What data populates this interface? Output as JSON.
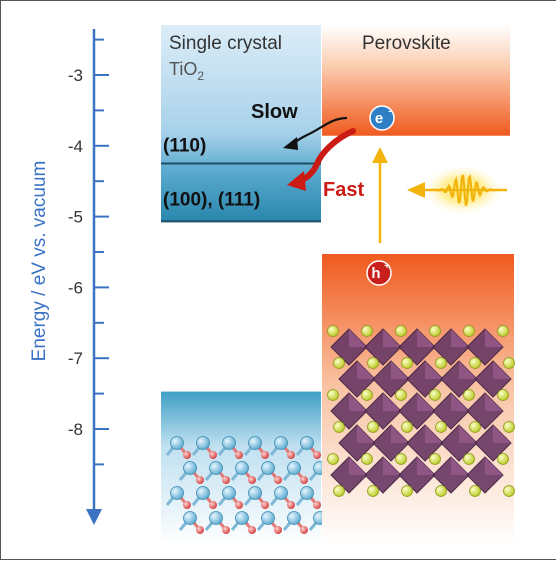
{
  "axis": {
    "label": "Energy / eV vs. vacuum",
    "ticks": [
      "-3",
      "-4",
      "-5",
      "-6",
      "-7",
      "-8"
    ],
    "tick_values": [
      -3,
      -4,
      -5,
      -6,
      -7,
      -8
    ],
    "range": [
      -2.3,
      -9.2
    ],
    "color": "#3b73c4"
  },
  "tio2": {
    "title_line1": "Single crystal",
    "title_line2": "TiO",
    "title_sub": "2",
    "facet_110": "(110)",
    "facet_100_111": "(100), (111)",
    "cb_top": -2.3,
    "level_110": -4.25,
    "level_100_111": -4.87,
    "vb_top": -7.5
  },
  "perovskite": {
    "title": "Perovskite",
    "cb_bottom": -3.9,
    "vb_top": -5.5
  },
  "labels": {
    "slow": "Slow",
    "fast": "Fast",
    "electron": "e",
    "electron_sup": "-",
    "hole": "h",
    "hole_sup": "+"
  },
  "colors": {
    "tio2_light": "#c9e3f4",
    "tio2_dark": "#2f8fb4",
    "perovskite_orange": "#f05a1e",
    "fast_arrow": "#cc1a14",
    "slow_arrow": "#111111",
    "excitation_arrow": "#f2b40c",
    "electron_dot": "#2e7fc6",
    "hole_dot": "#c8201a"
  }
}
